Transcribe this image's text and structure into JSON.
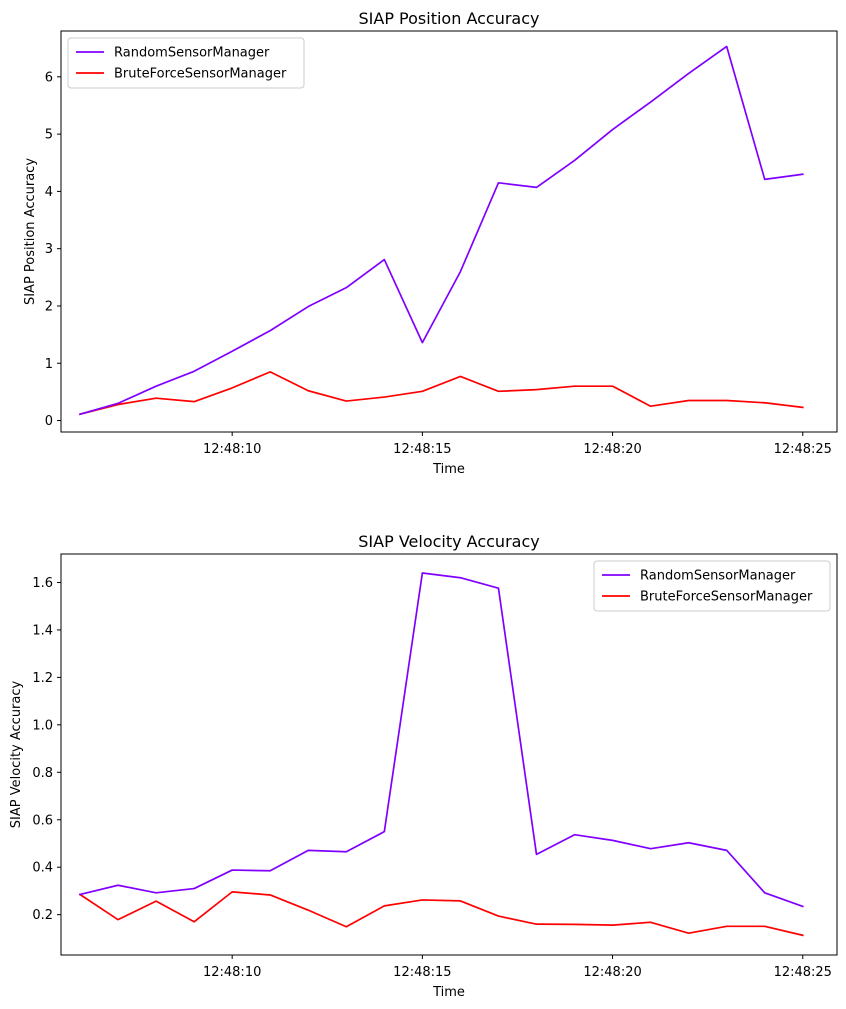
{
  "chart_data": [
    {
      "type": "line",
      "title": "SIAP Position Accuracy",
      "xlabel": "Time",
      "ylabel": "SIAP Position Accuracy",
      "x": [
        "12:48:06",
        "12:48:07",
        "12:48:08",
        "12:48:09",
        "12:48:10",
        "12:48:11",
        "12:48:12",
        "12:48:13",
        "12:48:14",
        "12:48:15",
        "12:48:16",
        "12:48:17",
        "12:48:18",
        "12:48:19",
        "12:48:20",
        "12:48:21",
        "12:48:22",
        "12:48:23",
        "12:48:24",
        "12:48:25"
      ],
      "xlim": [
        "12:48:05.5",
        "12:48:25.9"
      ],
      "xticks": [
        "12:48:10",
        "12:48:15",
        "12:48:20",
        "12:48:25"
      ],
      "ylim": [
        -0.2,
        6.8
      ],
      "yticks": [
        0,
        1,
        2,
        3,
        4,
        5,
        6
      ],
      "grid": false,
      "legend": "upper left",
      "series": [
        {
          "name": "RandomSensorManager",
          "color": "#8000ff",
          "values": [
            0.11,
            0.3,
            0.6,
            0.86,
            1.21,
            1.57,
            1.99,
            2.32,
            2.81,
            1.36,
            2.6,
            4.15,
            4.07,
            4.54,
            5.08,
            5.56,
            6.06,
            6.53,
            4.21,
            4.3
          ]
        },
        {
          "name": "BruteForceSensorManager",
          "color": "#ff0000",
          "values": [
            0.11,
            0.28,
            0.39,
            0.33,
            0.57,
            0.85,
            0.52,
            0.34,
            0.41,
            0.51,
            0.77,
            0.51,
            0.54,
            0.6,
            0.6,
            0.25,
            0.35,
            0.35,
            0.31,
            0.23
          ]
        }
      ]
    },
    {
      "type": "line",
      "title": "SIAP Velocity Accuracy",
      "xlabel": "Time",
      "ylabel": "SIAP Velocity Accuracy",
      "x": [
        "12:48:06",
        "12:48:07",
        "12:48:08",
        "12:48:09",
        "12:48:10",
        "12:48:11",
        "12:48:12",
        "12:48:13",
        "12:48:14",
        "12:48:15",
        "12:48:16",
        "12:48:17",
        "12:48:18",
        "12:48:19",
        "12:48:20",
        "12:48:21",
        "12:48:22",
        "12:48:23",
        "12:48:24",
        "12:48:25"
      ],
      "xlim": [
        "12:48:05.5",
        "12:48:25.9"
      ],
      "xticks": [
        "12:48:10",
        "12:48:15",
        "12:48:20",
        "12:48:25"
      ],
      "ylim": [
        0.03,
        1.72
      ],
      "yticks": [
        0.2,
        0.4,
        0.6,
        0.8,
        1.0,
        1.2,
        1.4,
        1.6
      ],
      "ytick_labels": [
        "0.2",
        "0.4",
        "0.6",
        "0.8",
        "1.0",
        "1.2",
        "1.4",
        "1.6"
      ],
      "grid": false,
      "legend": "upper right",
      "series": [
        {
          "name": "RandomSensorManager",
          "color": "#8000ff",
          "values": [
            0.285,
            0.324,
            0.292,
            0.31,
            0.388,
            0.385,
            0.471,
            0.465,
            0.55,
            1.64,
            1.62,
            1.576,
            0.454,
            0.537,
            0.513,
            0.478,
            0.503,
            0.471,
            0.292,
            0.235
          ]
        },
        {
          "name": "BruteForceSensorManager",
          "color": "#ff0000",
          "values": [
            0.285,
            0.179,
            0.257,
            0.17,
            0.296,
            0.283,
            0.219,
            0.149,
            0.237,
            0.262,
            0.258,
            0.194,
            0.16,
            0.159,
            0.156,
            0.168,
            0.122,
            0.151,
            0.151,
            0.113
          ]
        }
      ]
    }
  ]
}
